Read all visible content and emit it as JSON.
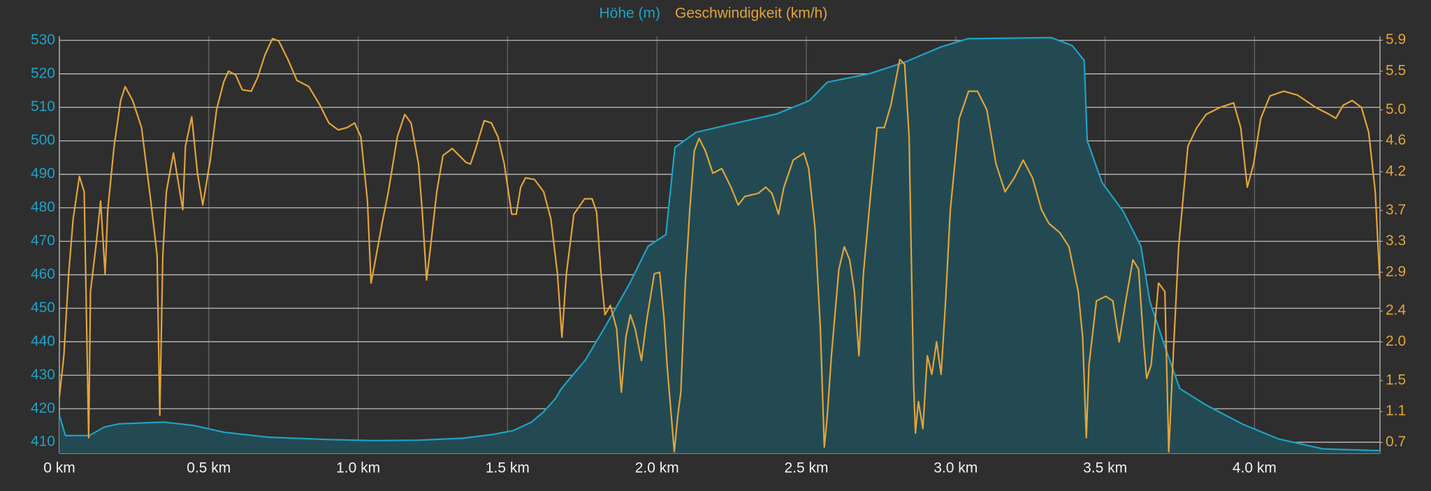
{
  "chart_data": {
    "type": "line",
    "background": "#2e2e2e",
    "grid": true,
    "legend": "top",
    "xlim": [
      0,
      4.42
    ],
    "ylim": [
      406.7,
      531.2
    ],
    "y2lim": [
      0.56,
      5.95
    ],
    "xticks": [
      {
        "value": 0,
        "label": "0 km"
      },
      {
        "value": 0.5,
        "label": "0.5 km"
      },
      {
        "value": 1,
        "label": "1.0 km"
      },
      {
        "value": 1.5,
        "label": "1.5 km"
      },
      {
        "value": 2,
        "label": "2.0 km"
      },
      {
        "value": 2.5,
        "label": "2.5 km"
      },
      {
        "value": 3,
        "label": "3.0 km"
      },
      {
        "value": 3.5,
        "label": "3.5 km"
      },
      {
        "value": 4,
        "label": "4.0 km"
      }
    ],
    "yticks": [
      410,
      420,
      430,
      440,
      450,
      460,
      470,
      480,
      490,
      500,
      510,
      520,
      530
    ],
    "y2ticks": [
      0.7,
      1.1,
      1.5,
      {
        "value": 2,
        "label": "2.0"
      },
      2.4,
      2.9,
      3.3,
      3.7,
      4.2,
      4.6,
      {
        "value": 5,
        "label": "5.0"
      },
      5.5,
      5.9
    ],
    "series": [
      {
        "name": "Höhe (m)",
        "color": "#1fa2c6",
        "area_color": "#234a52",
        "x": [
          0,
          0.02,
          0.1,
          0.15,
          0.2,
          0.35,
          0.45,
          0.55,
          0.7,
          0.9,
          1.05,
          1.2,
          1.35,
          1.45,
          1.52,
          1.58,
          1.62,
          1.66,
          1.68,
          1.76,
          1.83,
          1.91,
          1.97,
          2.03,
          2.06,
          2.13,
          2.25,
          2.4,
          2.51,
          2.57,
          2.71,
          2.83,
          2.95,
          3.04,
          3.32,
          3.39,
          3.43,
          3.44,
          3.49,
          3.56,
          3.62,
          3.65,
          3.7,
          3.75,
          3.84,
          3.96,
          4.08,
          4.23,
          4.42
        ],
        "values": [
          418,
          412,
          412,
          414.5,
          415.5,
          416,
          415,
          413,
          411.5,
          410.8,
          410.5,
          410.6,
          411.2,
          412.3,
          413.5,
          416,
          419,
          423,
          426,
          434.5,
          445,
          457.6,
          468.5,
          472,
          498,
          502.5,
          505,
          508,
          512,
          517.5,
          520,
          523.5,
          528,
          530.5,
          530.8,
          528.4,
          524,
          500,
          487.5,
          479,
          468.5,
          452,
          438.6,
          426,
          421,
          415.4,
          411,
          408,
          407.5
        ]
      },
      {
        "name": "Geschwindigkeit (km/h)",
        "color": "#e3a43a",
        "axis": "y2",
        "x": [
          0,
          0.015,
          0.031,
          0.046,
          0.067,
          0.083,
          0.098,
          0.104,
          0.122,
          0.138,
          0.153,
          0.162,
          0.183,
          0.205,
          0.22,
          0.245,
          0.275,
          0.306,
          0.327,
          0.336,
          0.346,
          0.358,
          0.382,
          0.398,
          0.413,
          0.422,
          0.443,
          0.462,
          0.48,
          0.505,
          0.526,
          0.55,
          0.566,
          0.59,
          0.612,
          0.642,
          0.664,
          0.688,
          0.713,
          0.734,
          0.765,
          0.795,
          0.835,
          0.872,
          0.902,
          0.933,
          0.963,
          0.988,
          1.009,
          1.031,
          1.043,
          1.055,
          1.08,
          1.101,
          1.131,
          1.156,
          1.177,
          1.202,
          1.214,
          1.229,
          1.239,
          1.263,
          1.284,
          1.315,
          1.33,
          1.361,
          1.376,
          1.391,
          1.422,
          1.446,
          1.468,
          1.489,
          1.514,
          1.529,
          1.544,
          1.56,
          1.59,
          1.621,
          1.645,
          1.667,
          1.682,
          1.697,
          1.722,
          1.758,
          1.783,
          1.798,
          1.813,
          1.826,
          1.844,
          1.865,
          1.881,
          1.896,
          1.911,
          1.927,
          1.948,
          1.966,
          1.991,
          2.009,
          2.024,
          2.034,
          2.049,
          2.058,
          2.07,
          2.08,
          2.095,
          2.11,
          2.125,
          2.141,
          2.162,
          2.187,
          2.217,
          2.248,
          2.272,
          2.294,
          2.339,
          2.364,
          2.385,
          2.407,
          2.425,
          2.456,
          2.492,
          2.508,
          2.529,
          2.547,
          2.56,
          2.569,
          2.584,
          2.609,
          2.627,
          2.645,
          2.661,
          2.676,
          2.691,
          2.713,
          2.737,
          2.761,
          2.783,
          2.813,
          2.829,
          2.844,
          2.859,
          2.865,
          2.875,
          2.89,
          2.905,
          2.92,
          2.936,
          2.951,
          2.966,
          2.982,
          3.012,
          3.043,
          3.073,
          3.104,
          3.135,
          3.165,
          3.196,
          3.226,
          3.257,
          3.287,
          3.312,
          3.349,
          3.379,
          3.41,
          3.425,
          3.437,
          3.446,
          3.471,
          3.502,
          3.526,
          3.547,
          3.569,
          3.593,
          3.612,
          3.63,
          3.639,
          3.654,
          3.679,
          3.7,
          3.713,
          3.725,
          3.746,
          3.777,
          3.807,
          3.838,
          3.884,
          3.93,
          3.954,
          3.976,
          3.997,
          4.021,
          4.052,
          4.098,
          4.144,
          4.205,
          4.251,
          4.272,
          4.297,
          4.327,
          4.358,
          4.382,
          4.404,
          4.419
        ],
        "values": [
          1.29,
          1.82,
          2.88,
          3.59,
          4.14,
          3.94,
          0.76,
          2.65,
          3.23,
          3.82,
          2.88,
          3.71,
          4.53,
          5.12,
          5.3,
          5.12,
          4.77,
          3.82,
          3.12,
          1.05,
          3.12,
          3.94,
          4.44,
          4.06,
          3.71,
          4.53,
          4.91,
          4.18,
          3.77,
          4.35,
          5.0,
          5.36,
          5.5,
          5.45,
          5.26,
          5.24,
          5.42,
          5.71,
          5.92,
          5.89,
          5.65,
          5.38,
          5.3,
          5.06,
          4.83,
          4.74,
          4.77,
          4.83,
          4.65,
          3.82,
          2.76,
          3.0,
          3.53,
          3.94,
          4.65,
          4.94,
          4.83,
          4.3,
          3.71,
          2.8,
          3.12,
          3.94,
          4.41,
          4.5,
          4.44,
          4.32,
          4.3,
          4.47,
          4.86,
          4.83,
          4.65,
          4.3,
          3.65,
          3.65,
          4.0,
          4.12,
          4.1,
          3.94,
          3.59,
          2.88,
          2.06,
          2.88,
          3.65,
          3.85,
          3.85,
          3.68,
          2.88,
          2.35,
          2.47,
          2.17,
          1.35,
          2.06,
          2.35,
          2.17,
          1.76,
          2.29,
          2.88,
          2.9,
          2.29,
          1.7,
          0.99,
          0.58,
          1.05,
          1.35,
          2.76,
          3.71,
          4.47,
          4.63,
          4.47,
          4.18,
          4.24,
          4.0,
          3.77,
          3.88,
          3.92,
          4.0,
          3.92,
          3.65,
          4.0,
          4.35,
          4.44,
          4.24,
          3.47,
          2.17,
          0.64,
          0.99,
          1.82,
          2.94,
          3.23,
          3.06,
          2.65,
          1.82,
          2.88,
          3.82,
          4.77,
          4.77,
          5.06,
          5.65,
          5.59,
          4.65,
          1.47,
          0.82,
          1.23,
          0.88,
          1.82,
          1.58,
          2.0,
          1.58,
          2.53,
          3.71,
          4.89,
          5.24,
          5.24,
          5.0,
          4.3,
          3.94,
          4.12,
          4.35,
          4.12,
          3.71,
          3.53,
          3.41,
          3.23,
          2.65,
          2.06,
          0.76,
          1.7,
          2.53,
          2.59,
          2.53,
          2.0,
          2.53,
          3.06,
          2.94,
          1.94,
          1.53,
          1.7,
          2.76,
          2.65,
          0.58,
          1.58,
          3.23,
          4.53,
          4.77,
          4.94,
          5.03,
          5.09,
          4.77,
          4.0,
          4.3,
          4.89,
          5.18,
          5.24,
          5.19,
          5.03,
          4.94,
          4.89,
          5.06,
          5.12,
          5.03,
          4.71,
          3.94,
          2.82
        ]
      }
    ]
  }
}
